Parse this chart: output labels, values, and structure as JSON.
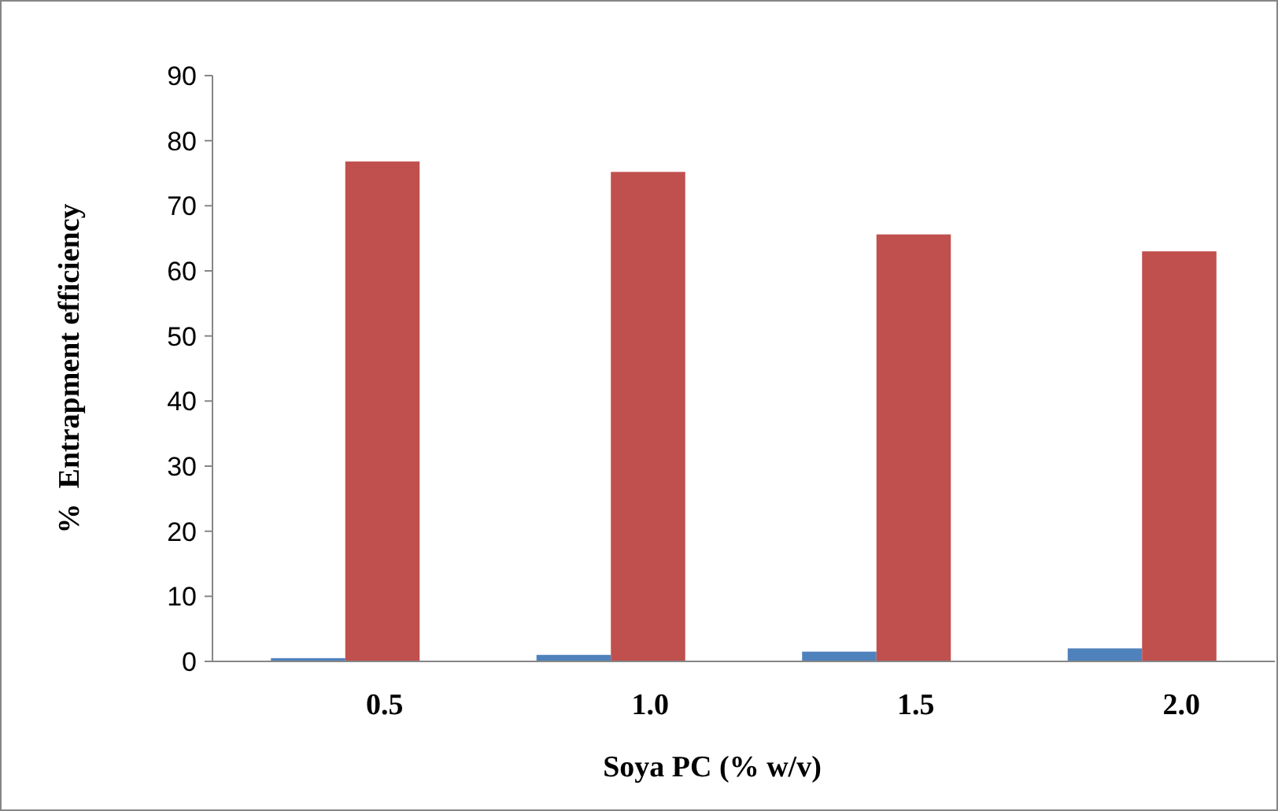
{
  "chart_data": {
    "type": "bar",
    "xlabel": "Soya PC (% w/v)",
    "ylabel": "%  Entrapment efficiency",
    "categories": [
      "0.5",
      "1.0",
      "1.5",
      "2.0"
    ],
    "series": [
      {
        "color": "#4f81bd",
        "values": [
          0.5,
          1.0,
          1.5,
          2.0
        ]
      },
      {
        "color": "#c0504d",
        "values": [
          76.8,
          75.2,
          65.6,
          63.0
        ]
      }
    ],
    "ylim": [
      0,
      90
    ],
    "yticks": [
      0,
      10,
      20,
      30,
      40,
      50,
      60,
      70,
      80,
      90
    ],
    "grid": false
  }
}
